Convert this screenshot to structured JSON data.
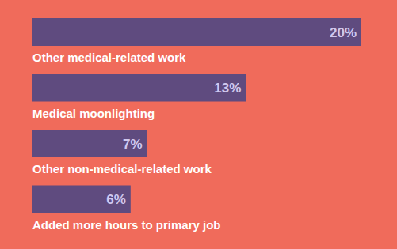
{
  "chart_data": {
    "type": "bar",
    "orientation": "horizontal",
    "categories": [
      "Other medical-related work",
      "Medical moonlighting",
      "Other non-medical-related work",
      "Added more hours to primary job"
    ],
    "values": [
      20,
      13,
      7,
      6
    ],
    "value_labels": [
      "20%",
      "13%",
      "7%",
      "6%"
    ],
    "data_labels": true,
    "color": "#5f4b7f",
    "xlim": [
      0,
      20
    ],
    "tick_labels": false,
    "grid": false
  }
}
